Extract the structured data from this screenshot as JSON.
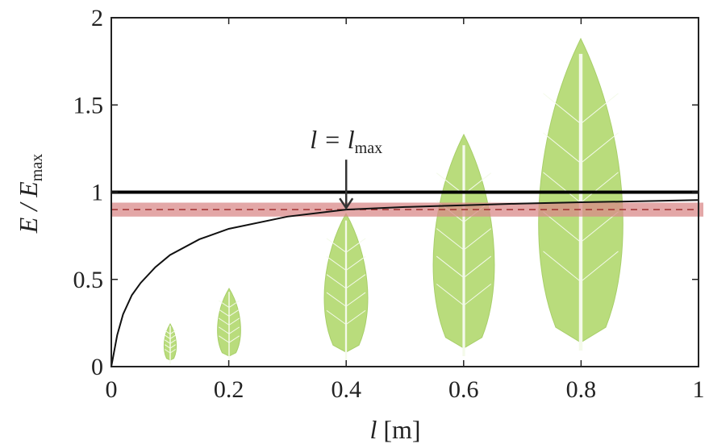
{
  "chart_data": {
    "type": "line",
    "x_label": {
      "main": "l",
      "unit": "[m]"
    },
    "y_label": {
      "main": "E / E",
      "sub": "max"
    },
    "x": [
      0,
      0.01,
      0.02,
      0.035,
      0.05,
      0.075,
      0.1,
      0.15,
      0.2,
      0.3,
      0.4,
      0.5,
      0.6,
      0.7,
      0.8,
      0.9,
      1
    ],
    "series": [
      {
        "color": "#111111",
        "values": [
          0,
          0.18,
          0.3,
          0.41,
          0.48,
          0.57,
          0.64,
          0.73,
          0.79,
          0.86,
          0.9,
          0.915,
          0.925,
          0.935,
          0.942,
          0.948,
          0.955
        ]
      }
    ],
    "reference_lines": [
      {
        "value": 1,
        "color": "#000000",
        "dashed": false
      },
      {
        "value": 0.9,
        "color": "#a03030",
        "dashed": true
      }
    ],
    "band": {
      "ylim": [
        0.86,
        0.94
      ],
      "color": "#d98a8a"
    },
    "annotation": {
      "main": "l = l",
      "sub": "max",
      "x": 0.4,
      "y": 0.9
    },
    "xlim": [
      0,
      1
    ],
    "ylim": [
      0,
      2
    ],
    "xticks": [
      0,
      0.2,
      0.4,
      0.6,
      0.8,
      1
    ],
    "yticks": [
      0,
      0.5,
      1,
      1.5,
      2
    ],
    "grid": false
  }
}
